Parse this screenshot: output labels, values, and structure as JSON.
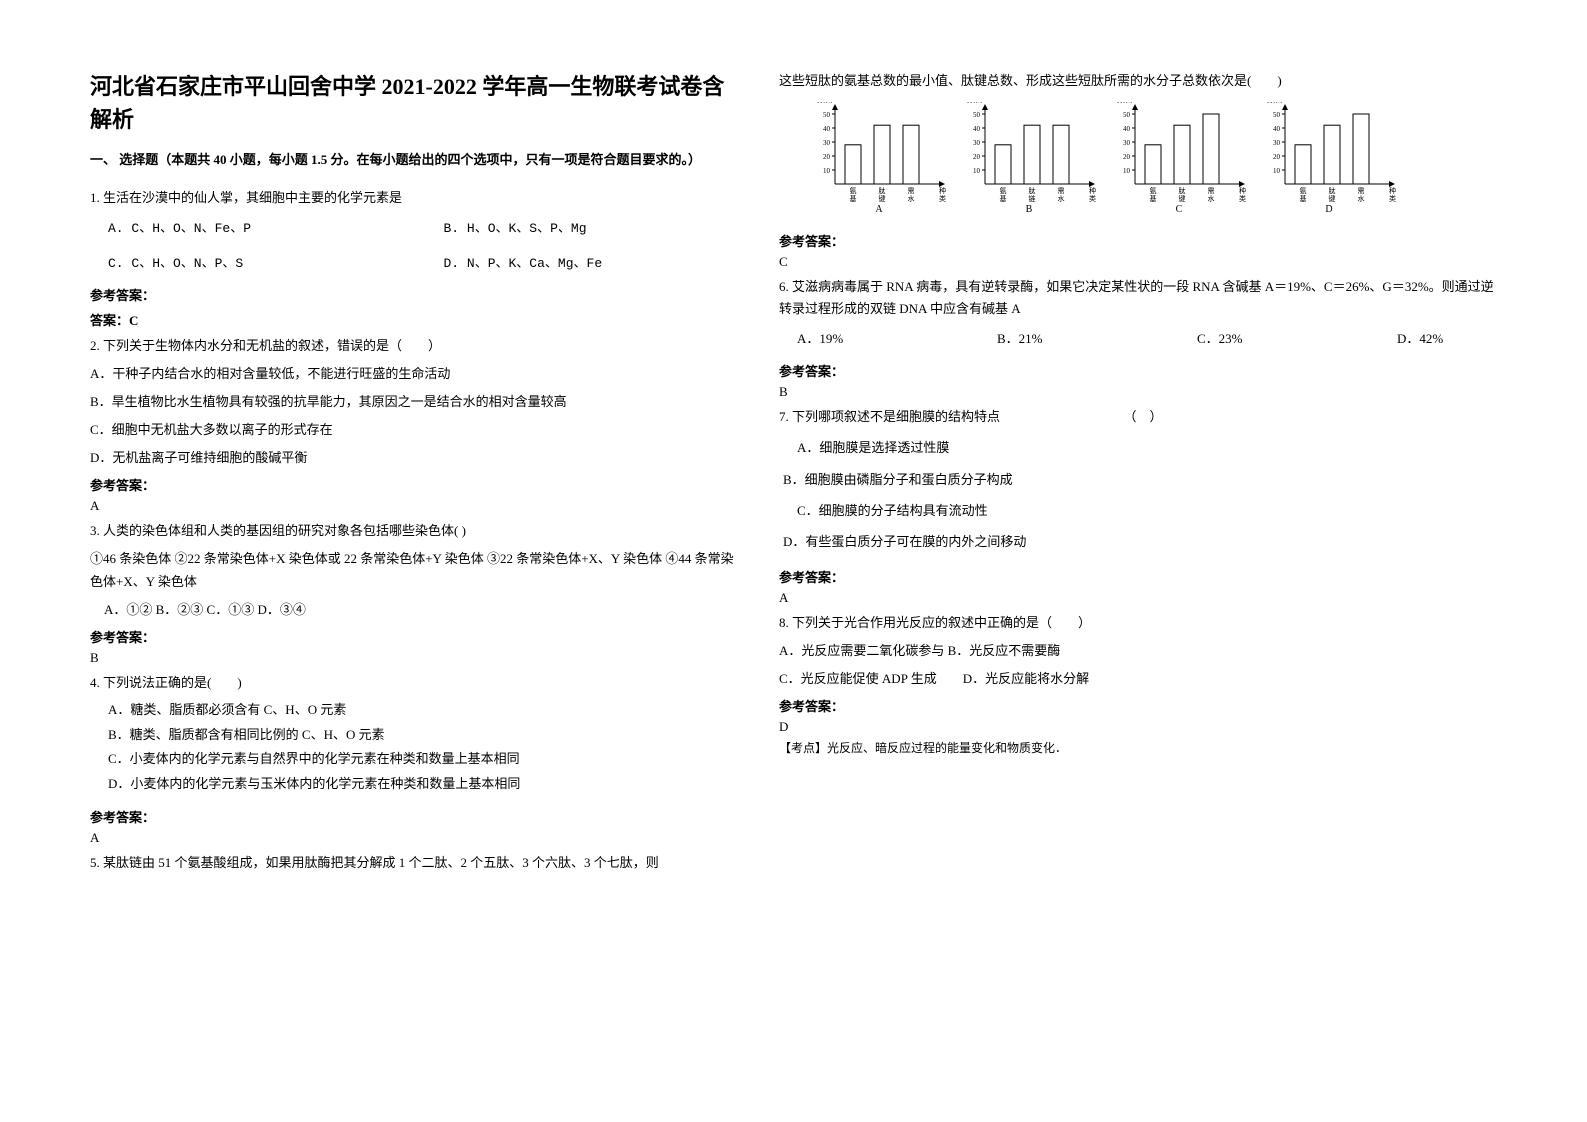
{
  "title": "河北省石家庄市平山回舍中学 2021-2022 学年高一生物联考试卷含解析",
  "sectionHeader": "一、 选择题（本题共 40 小题，每小题 1.5 分。在每小题给出的四个选项中，只有一项是符合题目要求的。）",
  "q1": {
    "text": "1. 生活在沙漠中的仙人掌，其细胞中主要的化学元素是",
    "optA": "A. C、H、O、N、Fe、P",
    "optB": "B. H、O、K、S、P、Mg",
    "optC": "C. C、H、O、N、P、S",
    "optD": "D. N、P、K、Ca、Mg、Fe",
    "ansLabel": "参考答案：",
    "ansLine": "答案：C"
  },
  "q2": {
    "text": "2. 下列关于生物体内水分和无机盐的叙述，错误的是（　　）",
    "A": "A．干种子内结合水的相对含量较低，不能进行旺盛的生命活动",
    "B": "B．旱生植物比水生植物具有较强的抗旱能力，其原因之一是结合水的相对含量较高",
    "C": "C．细胞中无机盐大多数以离子的形式存在",
    "D": "D．无机盐离子可维持细胞的酸碱平衡",
    "ansLabel": "参考答案：",
    "ans": "A"
  },
  "q3": {
    "text": "3. 人类的染色体组和人类的基因组的研究对象各包括哪些染色体(  )",
    "line2": "①46 条染色体  ②22 条常染色体+X 染色体或 22 条常染色体+Y 染色体  ③22 条常染色体+X、Y 染色体  ④44 条常染色体+X、Y 染色体",
    "opts": "A．①②   B．②③   C．①③   D．③④",
    "ansLabel": "参考答案：",
    "ans": "B"
  },
  "q4": {
    "text": "4. 下列说法正确的是(　　)",
    "A": "A．糖类、脂质都必须含有 C、H、O 元素",
    "B": "B．糖类、脂质都含有相同比例的 C、H、O 元素",
    "C": "C．小麦体内的化学元素与自然界中的化学元素在种类和数量上基本相同",
    "D": "D．小麦体内的化学元素与玉米体内的化学元素在种类和数量上基本相同",
    "ansLabel": "参考答案：",
    "ans": "A"
  },
  "q5": {
    "text": "5. 某肽链由 51 个氨基酸组成，如果用肽酶把其分解成 1 个二肽、2 个五肽、3 个六肽、3 个七肽，则",
    "cont": "这些短肽的氨基总数的最小值、肽键总数、形成这些短肽所需的水分子总数依次是(　　)",
    "ansLabel": "参考答案：",
    "ans": "C"
  },
  "charts": {
    "ylabel": "数目",
    "yticks": [
      10,
      20,
      30,
      40,
      50
    ],
    "xcat1": "氨基数",
    "xcat2": "肽键数",
    "xcat3": "需水数",
    "xcat2b": "肽链数",
    "A": {
      "bars": [
        28,
        42,
        42
      ],
      "label": "A"
    },
    "B": {
      "bars": [
        28,
        42,
        42
      ],
      "label": "B",
      "cat2": "肽链数"
    },
    "C": {
      "bars": [
        28,
        42,
        50
      ],
      "label": "C"
    },
    "D": {
      "bars": [
        28,
        42,
        50
      ],
      "label": "D"
    },
    "barColor": "#ffffff",
    "barStroke": "#000000",
    "axisColor": "#000000"
  },
  "q6": {
    "text": "6. 艾滋病病毒属于 RNA 病毒，具有逆转录酶，如果它决定某性状的一段 RNA 含碱基 A＝19%、C＝26%、G＝32%。则通过逆转录过程形成的双链 DNA 中应含有碱基 A",
    "A": "A．19%",
    "B": "B．21%",
    "C": "C．23%",
    "D": "D．42%",
    "ansLabel": "参考答案：",
    "ans": "B"
  },
  "q7": {
    "text": "7. 下列哪项叙述不是细胞膜的结构特点　　　　　　　　　　（　）",
    "A": "A．细胞膜是选择透过性膜",
    "B": "B．细胞膜由磷脂分子和蛋白质分子构成",
    "C": "C．细胞膜的分子结构具有流动性",
    "D": "D．有些蛋白质分子可在膜的内外之间移动",
    "ansLabel": "参考答案：",
    "ans": "A"
  },
  "q8": {
    "text": "8. 下列关于光合作用光反应的叙述中正确的是（　　）",
    "line2": "A．光反应需要二氧化碳参与   B．光反应不需要酶",
    "line3": "C．光反应能促使 ADP 生成　　D．光反应能将水分解",
    "ansLabel": "参考答案：",
    "ans": "D",
    "note": "【考点】光反应、暗反应过程的能量变化和物质变化．"
  }
}
